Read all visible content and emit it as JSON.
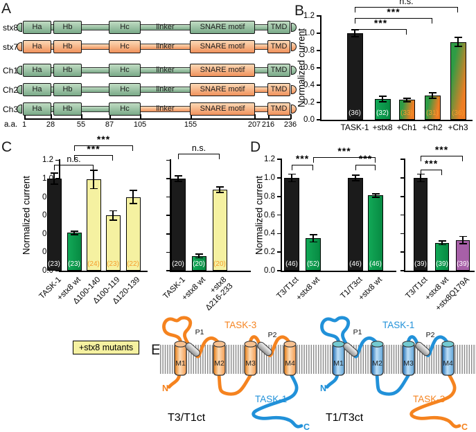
{
  "panel_letters": {
    "a": "A",
    "b": "B",
    "c": "C",
    "d": "D",
    "e": "E"
  },
  "colors": {
    "black_bar": "#1b1b1b",
    "green_bar": "#0a9c4e",
    "yellow_bar": "#f5f1a1",
    "purple_bar": "#a760a8",
    "chimera_green": "#2e9c45",
    "chimera_orange": "#ee7d24",
    "domain_green": "#7aa988",
    "domain_green_light": "#c0dcc3",
    "domain_orange": "#f0925c",
    "domain_orange_light": "#fcd9b6",
    "task3_orange": "#f5831f",
    "task1_blue": "#2191d9",
    "n_label_orange": "#f59d2e"
  },
  "panel_a": {
    "axis_label": "a.a.",
    "ticks": [
      "1",
      "28",
      "55",
      "87",
      "105",
      "155",
      "207",
      "216",
      "236"
    ],
    "domains": {
      "ha": "Ha",
      "hb": "Hb",
      "hc": "Hc",
      "linker": "linker",
      "snare": "SNARE motif",
      "tmd": "TMD"
    },
    "rows": [
      {
        "label": "stx8",
        "segments": {
          "cap_l": "g",
          "ha": "g",
          "gapbar": "g",
          "hb": "g",
          "bar1": "g",
          "hc": "g",
          "linker": "g",
          "snare": "g",
          "bar2": "g",
          "tmd": "g",
          "cap_r": "g"
        }
      },
      {
        "label": "stx7",
        "segments": {
          "cap_l": "o",
          "ha": "o",
          "gapbar": "o",
          "hb": "o",
          "bar1": "o",
          "hc": "o",
          "linker": "o",
          "snare": "o",
          "bar2": "o",
          "tmd": "o",
          "cap_r": "o"
        }
      },
      {
        "label": "Ch1",
        "segments": {
          "cap_l": "g",
          "ha": "g",
          "gapbar": "g",
          "hb": "g",
          "bar1": "g",
          "hc": "g",
          "linker": "g",
          "snare": "o",
          "bar2": "g",
          "tmd": "g",
          "cap_r": "g"
        }
      },
      {
        "label": "Ch2",
        "segments": {
          "cap_l": "g",
          "ha": "g",
          "gapbar": "g",
          "hb": "g",
          "bar1": "g",
          "hc": "g",
          "linker": "g",
          "snare": "o",
          "bar2": "o",
          "tmd": "o",
          "cap_r": "o"
        }
      },
      {
        "label": "Ch3",
        "segments": {
          "cap_l": "g",
          "ha": "g",
          "gapbar": "g",
          "hb": "g",
          "bar1": "g",
          "hc": "g",
          "linker": "o",
          "snare": "o",
          "bar2": "o",
          "tmd": "o",
          "cap_r": "o"
        }
      }
    ]
  },
  "chart_data": [
    {
      "id": "chart-b",
      "type": "bar",
      "ylabel": "Normalized current",
      "ylim": [
        0,
        1.2
      ],
      "yticks": [
        "0.0",
        "0.2",
        "0.4",
        "0.6",
        "0.8",
        "1.0",
        "1.2"
      ],
      "categories": [
        "TASK-1",
        "+stx8",
        "+Ch1",
        "+Ch2",
        "+Ch3"
      ],
      "values": [
        1.0,
        0.24,
        0.23,
        0.28,
        0.9
      ],
      "errors": [
        0.04,
        0.03,
        0.02,
        0.03,
        0.05
      ],
      "n": [
        "(36)",
        "(32)",
        "(33)",
        "(31)",
        "(36)"
      ],
      "bar_colors": [
        "black",
        "green",
        "chimera",
        "chimera",
        "chimera"
      ],
      "significance": [
        {
          "from": 0,
          "to": 2,
          "label": "***",
          "level": 0
        },
        {
          "from": 0,
          "to": 3,
          "label": "***",
          "level": 1
        },
        {
          "from": 0,
          "to": 4,
          "label": "n.s.",
          "level": 2
        }
      ]
    },
    {
      "id": "chart-c-left",
      "type": "bar",
      "ylabel": "Normalized current",
      "ylim": [
        0,
        1.2
      ],
      "yticks": [
        "0.0",
        "0.2",
        "0.4",
        "0.6",
        "0.8",
        "1.0",
        "1.2"
      ],
      "categories": [
        "TASK-1",
        "+stx8 wt",
        "Δ100-140",
        "Δ100-119",
        "Δ120-139"
      ],
      "values": [
        1.0,
        0.41,
        0.99,
        0.6,
        0.8
      ],
      "errors": [
        0.06,
        0.02,
        0.1,
        0.05,
        0.07
      ],
      "n": [
        "(23)",
        "(23)",
        "(24)",
        "(23)",
        "(22)"
      ],
      "bar_colors": [
        "black",
        "green",
        "yellow",
        "yellow",
        "yellow"
      ],
      "significance": [
        {
          "from": 0,
          "to": 2,
          "label": "n.s.",
          "level": 0
        },
        {
          "from": 1,
          "to": 3,
          "label": "***",
          "level": 1
        },
        {
          "from": 1,
          "to": 4,
          "label": "***",
          "level": 2
        }
      ]
    },
    {
      "id": "chart-c-right",
      "type": "bar",
      "ylim": [
        0,
        1.2
      ],
      "ytick_labels_visible": false,
      "yticks": [
        "0.0",
        "0.2",
        "0.4",
        "0.6",
        "0.8",
        "1.0",
        "1.2"
      ],
      "categories": [
        "TASK-1",
        "+stx8 wt",
        "+stx8\nΔ216-233"
      ],
      "values": [
        1.0,
        0.16,
        0.88
      ],
      "errors": [
        0.03,
        0.02,
        0.03
      ],
      "n": [
        "(20)",
        "(20)",
        "(20)"
      ],
      "bar_colors": [
        "black",
        "green",
        "yellow"
      ],
      "significance": [
        {
          "from": 0,
          "to": 2,
          "label": "n.s.",
          "level": 0
        }
      ]
    },
    {
      "id": "chart-d-left",
      "type": "bar",
      "ylabel": "Normalized current",
      "ylim": [
        0,
        1.2
      ],
      "yticks": [
        "0.0",
        "0.2",
        "0.4",
        "0.6",
        "0.8",
        "1.0",
        "1.2"
      ],
      "categories": [
        "T3/T1ct",
        "+stx8 wt",
        "T1/T3ct",
        "+stx8 wt"
      ],
      "values": [
        1.0,
        0.35,
        1.0,
        0.81
      ],
      "errors": [
        0.04,
        0.04,
        0.03,
        0.02
      ],
      "n": [
        "(46)",
        "(52)",
        "(46)",
        "(46)"
      ],
      "bar_colors": [
        "black",
        "green",
        "black",
        "green"
      ],
      "significance": [
        {
          "from": 0,
          "to": 1,
          "label": "***",
          "level": 0
        },
        {
          "from": 2,
          "to": 3,
          "label": "***",
          "level": 0
        },
        {
          "from": 1,
          "to": 3,
          "label": "***",
          "level": 1
        }
      ]
    },
    {
      "id": "chart-d-right",
      "type": "bar",
      "ylim": [
        0,
        1.2
      ],
      "ytick_labels_visible": false,
      "yticks": [
        "0.0",
        "0.2",
        "0.4",
        "0.6",
        "0.8",
        "1.0",
        "1.2"
      ],
      "categories": [
        "T3/T1ct",
        "+stx8 wt",
        "+stx8Q179A"
      ],
      "values": [
        1.0,
        0.3,
        0.33
      ],
      "errors": [
        0.04,
        0.02,
        0.04
      ],
      "n": [
        "(39)",
        "(39)",
        "(39)"
      ],
      "bar_colors": [
        "black",
        "green",
        "purple"
      ],
      "significance": [
        {
          "from": 0,
          "to": 1,
          "label": "***",
          "level": 0
        },
        {
          "from": 0,
          "to": 2,
          "label": "***",
          "level": 1
        }
      ]
    }
  ],
  "panel_c": {
    "mutants_label": "+stx8 mutants"
  },
  "panel_e": {
    "left": {
      "name": "T3/T1ct",
      "main_label": "TASK-3",
      "tail_label": "TASK-1",
      "n_label": "N",
      "c_label": "C",
      "helices": [
        "M1",
        "M2",
        "M3",
        "M4"
      ],
      "pores": [
        "P1",
        "P2"
      ],
      "main_color": "orange",
      "tail_color": "blue"
    },
    "right": {
      "name": "T1/T3ct",
      "main_label": "TASK-1",
      "tail_label": "TASK-3",
      "n_label": "N",
      "c_label": "C",
      "helices": [
        "M1",
        "M2",
        "M3",
        "M4"
      ],
      "pores": [
        "P1",
        "P2"
      ],
      "main_color": "blue",
      "tail_color": "orange"
    }
  }
}
